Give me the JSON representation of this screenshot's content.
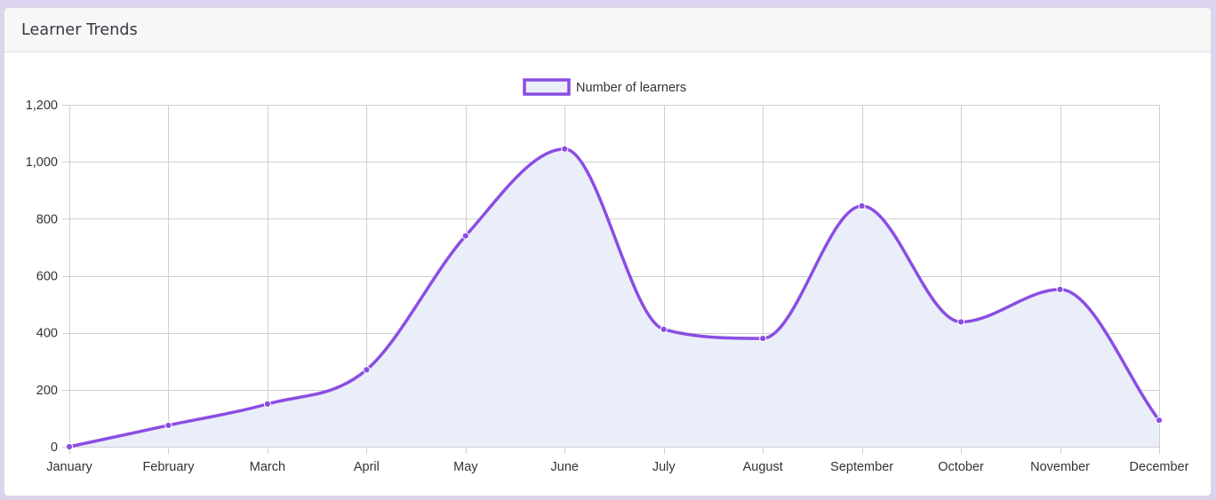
{
  "card": {
    "title": "Learner Trends"
  },
  "colors": {
    "line": "#8b4de3",
    "fill": "#eaeef9",
    "grid": "#cfcfd4",
    "background": "#dcd3ee"
  },
  "chart_data": {
    "type": "line",
    "categories": [
      "January",
      "February",
      "March",
      "April",
      "May",
      "June",
      "July",
      "August",
      "September",
      "October",
      "November",
      "December"
    ],
    "series": [
      {
        "name": "Number of learners",
        "values": [
          0,
          75,
          150,
          270,
          740,
          1045,
          412,
          380,
          845,
          438,
          552,
          93
        ]
      }
    ],
    "yticks": [
      "0",
      "200",
      "400",
      "600",
      "800",
      "1,000",
      "1,200"
    ],
    "ylim": [
      0,
      1200
    ],
    "grid": true,
    "legend_position": "top-center",
    "area_fill": true,
    "smooth": true
  }
}
